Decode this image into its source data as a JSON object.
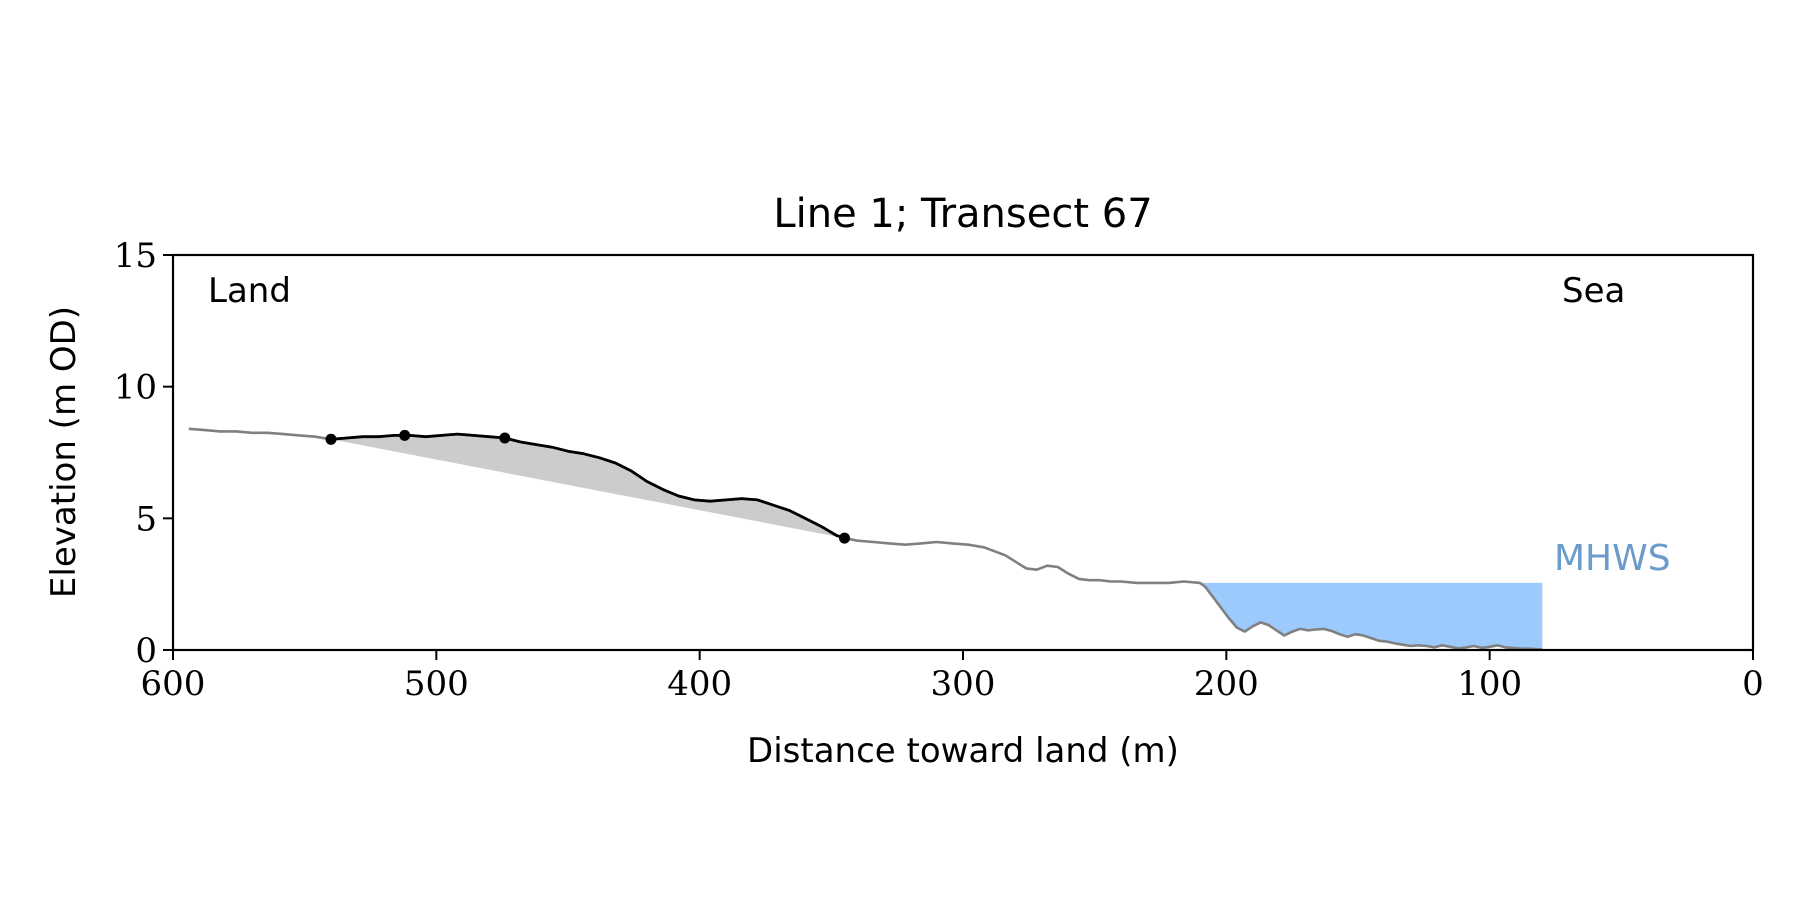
{
  "chart_data": {
    "type": "line",
    "title": "Line 1; Transect 67",
    "xlabel": "Distance toward land (m)",
    "ylabel": "Elevation (m OD)",
    "xlim": [
      600,
      0
    ],
    "ylim": [
      0,
      15
    ],
    "xticks": [
      600,
      500,
      400,
      300,
      200,
      100,
      0
    ],
    "yticks": [
      0,
      5,
      10,
      15
    ],
    "grid": false,
    "annotations": {
      "land": "Land",
      "sea": "Sea",
      "mhws": "MHWS"
    },
    "mhws_level": 2.55,
    "colors": {
      "profile": "#808080",
      "feature": "#000000",
      "shading": "#cccccc",
      "water": "#9ccafc",
      "mhws_label": "#6a9bcb"
    },
    "series": [
      {
        "role": "profile",
        "x": [
          594,
          588,
          582,
          576,
          570,
          564,
          558,
          552,
          546,
          540,
          534,
          528,
          522,
          516,
          510,
          504,
          498,
          492,
          486,
          480,
          474,
          468,
          462,
          456,
          450,
          444,
          438,
          432,
          426,
          420,
          414,
          408,
          402,
          396,
          390,
          384,
          378,
          372,
          366,
          360,
          354,
          348,
          345,
          340,
          334,
          328,
          322,
          316,
          310,
          304,
          298,
          292,
          288,
          284,
          280,
          276,
          272,
          268,
          264,
          260,
          256,
          252,
          248,
          244,
          240,
          234,
          228,
          222,
          216,
          210,
          208,
          205,
          202,
          199,
          196,
          193,
          190,
          187,
          184,
          181,
          178,
          175,
          172,
          169,
          166,
          163,
          160,
          157,
          154,
          151,
          148,
          145,
          142,
          139,
          136,
          133,
          130,
          127,
          124,
          121,
          118,
          115,
          112,
          109,
          106,
          103,
          100,
          97,
          94,
          91,
          88,
          85,
          82,
          80
        ],
        "y": [
          8.4,
          8.35,
          8.3,
          8.3,
          8.25,
          8.25,
          8.2,
          8.15,
          8.1,
          8.0,
          8.05,
          8.1,
          8.1,
          8.15,
          8.15,
          8.1,
          8.15,
          8.2,
          8.15,
          8.1,
          8.05,
          7.9,
          7.8,
          7.7,
          7.55,
          7.45,
          7.3,
          7.1,
          6.8,
          6.4,
          6.1,
          5.85,
          5.7,
          5.65,
          5.7,
          5.75,
          5.7,
          5.5,
          5.3,
          5.0,
          4.7,
          4.35,
          4.25,
          4.15,
          4.1,
          4.05,
          4.0,
          4.05,
          4.1,
          4.05,
          4.0,
          3.9,
          3.75,
          3.6,
          3.35,
          3.1,
          3.05,
          3.2,
          3.15,
          2.9,
          2.7,
          2.65,
          2.65,
          2.6,
          2.6,
          2.55,
          2.55,
          2.55,
          2.6,
          2.55,
          2.4,
          2.0,
          1.6,
          1.2,
          0.85,
          0.7,
          0.9,
          1.05,
          0.95,
          0.75,
          0.55,
          0.7,
          0.8,
          0.75,
          0.78,
          0.8,
          0.72,
          0.6,
          0.5,
          0.6,
          0.55,
          0.45,
          0.35,
          0.32,
          0.25,
          0.2,
          0.15,
          0.18,
          0.15,
          0.1,
          0.18,
          0.12,
          0.06,
          0.1,
          0.15,
          0.08,
          0.12,
          0.18,
          0.1,
          0.08,
          0.05,
          0.05,
          0.03,
          0.02
        ]
      },
      {
        "role": "feature",
        "x": [
          540,
          534,
          528,
          522,
          516,
          510,
          504,
          498,
          492,
          486,
          480,
          474,
          468,
          462,
          456,
          450,
          444,
          438,
          432,
          426,
          420,
          414,
          408,
          402,
          396,
          390,
          384,
          378,
          372,
          366,
          360,
          354,
          348,
          345
        ],
        "y": [
          8.0,
          8.05,
          8.1,
          8.1,
          8.15,
          8.15,
          8.1,
          8.15,
          8.2,
          8.15,
          8.1,
          8.05,
          7.9,
          7.8,
          7.7,
          7.55,
          7.45,
          7.3,
          7.1,
          6.8,
          6.4,
          6.1,
          5.85,
          5.7,
          5.65,
          5.7,
          5.75,
          5.7,
          5.5,
          5.3,
          5.0,
          4.7,
          4.35,
          4.25
        ]
      }
    ],
    "markers": [
      {
        "x": 540,
        "y": 8.0
      },
      {
        "x": 512,
        "y": 8.15
      },
      {
        "x": 474,
        "y": 8.05
      },
      {
        "x": 345,
        "y": 4.25
      }
    ],
    "water_fill": {
      "x_start": 210,
      "x_end": 80,
      "level": 2.55
    }
  }
}
